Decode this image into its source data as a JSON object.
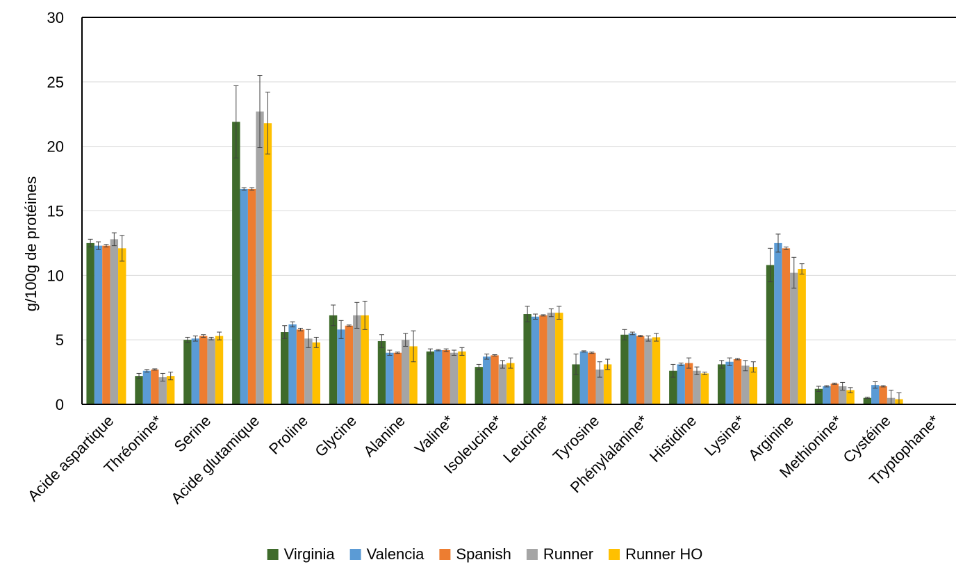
{
  "chart_data": {
    "type": "bar",
    "title": "",
    "xlabel": "",
    "ylabel": "g/100g de protéines",
    "ylim": [
      0,
      30
    ],
    "yticks": [
      0,
      5,
      10,
      15,
      20,
      25,
      30
    ],
    "grid": true,
    "legend_position": "bottom",
    "error_bars": true,
    "categories": [
      "Acide aspartique",
      "Thréonine*",
      "Serine",
      "Acide glutamique",
      "Proline",
      "Glycine",
      "Alanine",
      "Valine*",
      "Isoleucine*",
      "Leucine*",
      "Tyrosine",
      "Phénylalanine*",
      "Histidine",
      "Lysine*",
      "Arginine",
      "Methionine*",
      "Cystéine",
      "Tryptophane*"
    ],
    "series": [
      {
        "name": "Virginia",
        "color": "#3f6b2b",
        "values": [
          12.5,
          2.2,
          5.0,
          21.9,
          5.6,
          6.9,
          4.9,
          4.1,
          2.9,
          7.0,
          3.1,
          5.4,
          2.6,
          3.1,
          10.8,
          1.2,
          0.5,
          0
        ],
        "errors": [
          0.3,
          0.2,
          0.2,
          2.8,
          0.5,
          0.8,
          0.5,
          0.2,
          0.2,
          0.6,
          0.8,
          0.4,
          0.5,
          0.3,
          1.3,
          0.2,
          0.05,
          0
        ]
      },
      {
        "name": "Valencia",
        "color": "#5b9bd5",
        "values": [
          12.3,
          2.6,
          5.1,
          16.7,
          6.2,
          5.8,
          4.0,
          4.2,
          3.7,
          6.8,
          4.1,
          5.5,
          3.1,
          3.3,
          12.5,
          1.4,
          1.5,
          0
        ],
        "errors": [
          0.3,
          0.1,
          0.2,
          0.1,
          0.2,
          0.7,
          0.2,
          0.05,
          0.2,
          0.2,
          0.05,
          0.1,
          0.1,
          0.3,
          0.7,
          0.05,
          0.25,
          0
        ]
      },
      {
        "name": "Spanish",
        "color": "#ed7d31",
        "values": [
          12.3,
          2.7,
          5.3,
          16.7,
          5.8,
          6.1,
          4.0,
          4.2,
          3.8,
          6.9,
          4.0,
          5.3,
          3.2,
          3.5,
          12.1,
          1.6,
          1.4,
          0
        ],
        "errors": [
          0.1,
          0.05,
          0.1,
          0.1,
          0.1,
          0.05,
          0.05,
          0.1,
          0.05,
          0.05,
          0.05,
          0.05,
          0.4,
          0.05,
          0.1,
          0.05,
          0.05,
          0
        ]
      },
      {
        "name": "Runner",
        "color": "#a5a5a5",
        "values": [
          12.8,
          2.1,
          5.1,
          22.7,
          5.1,
          6.9,
          5.0,
          4.0,
          3.1,
          7.1,
          2.7,
          5.1,
          2.6,
          3.0,
          10.2,
          1.4,
          0.5,
          0
        ],
        "errors": [
          0.5,
          0.3,
          0.1,
          2.8,
          0.7,
          1.0,
          0.5,
          0.2,
          0.3,
          0.3,
          0.6,
          0.2,
          0.3,
          0.4,
          1.2,
          0.3,
          0.6,
          0
        ]
      },
      {
        "name": "Runner HO",
        "color": "#ffc000",
        "values": [
          12.1,
          2.2,
          5.3,
          21.8,
          4.8,
          6.9,
          4.5,
          4.1,
          3.2,
          7.1,
          3.1,
          5.2,
          2.4,
          2.9,
          10.5,
          1.1,
          0.4,
          0
        ],
        "errors": [
          1.0,
          0.3,
          0.3,
          2.4,
          0.4,
          1.1,
          1.2,
          0.3,
          0.4,
          0.5,
          0.4,
          0.3,
          0.1,
          0.4,
          0.4,
          0.2,
          0.5,
          0
        ]
      }
    ]
  }
}
